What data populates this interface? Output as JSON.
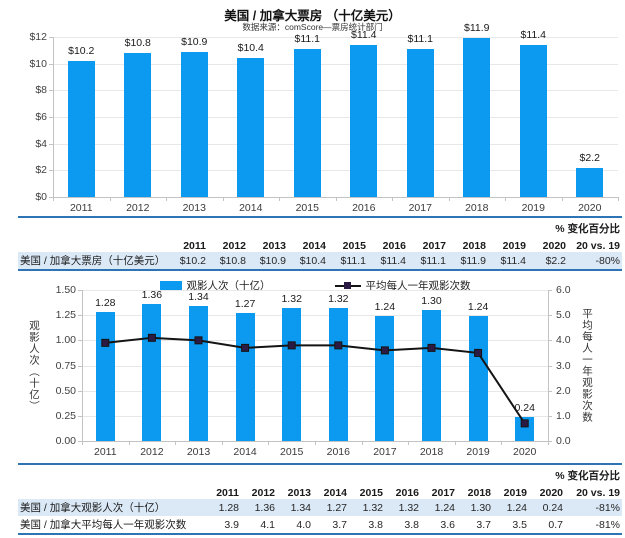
{
  "title": "美国 / 加拿大票房 （十亿美元）",
  "subtitle": "数据来源：comScore—票房统计部门",
  "colors": {
    "bar": "#0C99F0",
    "line": "#141414",
    "marker": "#2B1B44",
    "table_border": "#2E74B5",
    "row_highlight": "#DBE9F7",
    "grid": "#E8E8E8",
    "axis": "#C3C3C3"
  },
  "chart_data": [
    {
      "type": "bar",
      "title": "美国 / 加拿大票房 （十亿美元）",
      "subtitle": "数据来源：comScore—票房统计部门",
      "categories": [
        "2011",
        "2012",
        "2013",
        "2014",
        "2015",
        "2016",
        "2017",
        "2018",
        "2019",
        "2020"
      ],
      "values": [
        10.2,
        10.8,
        10.9,
        10.4,
        11.1,
        11.4,
        11.1,
        11.9,
        11.4,
        2.2
      ],
      "data_labels": [
        "$10.2",
        "$10.8",
        "$10.9",
        "$10.4",
        "$11.1",
        "$11.4",
        "$11.1",
        "$11.9",
        "$11.4",
        "$2.2"
      ],
      "xlabel": "",
      "ylabel": "",
      "ylim": [
        0,
        12
      ],
      "yticks": [
        "$0",
        "$2",
        "$4",
        "$6",
        "$8",
        "$10",
        "$12"
      ],
      "grid": true,
      "legend_position": "none"
    },
    {
      "type": "combo",
      "categories": [
        "2011",
        "2012",
        "2013",
        "2014",
        "2015",
        "2016",
        "2017",
        "2018",
        "2019",
        "2020"
      ],
      "series": [
        {
          "name": "观影人次（十亿）",
          "type": "bar",
          "axis": "left",
          "values": [
            1.28,
            1.36,
            1.34,
            1.27,
            1.32,
            1.32,
            1.24,
            1.3,
            1.24,
            0.24
          ],
          "data_labels": [
            "1.28",
            "1.36",
            "1.34",
            "1.27",
            "1.32",
            "1.32",
            "1.24",
            "1.30",
            "1.24",
            "0.24"
          ]
        },
        {
          "name": "平均每人一年观影次数",
          "type": "line",
          "axis": "right",
          "values": [
            3.9,
            4.1,
            4.0,
            3.7,
            3.8,
            3.8,
            3.6,
            3.7,
            3.5,
            0.7
          ]
        }
      ],
      "left_axis": {
        "label": "观影人次（十亿）",
        "lim": [
          0,
          1.5
        ],
        "ticks": [
          "0.00",
          "0.25",
          "0.50",
          "0.75",
          "1.00",
          "1.25",
          "1.50"
        ]
      },
      "right_axis": {
        "label": "平均每人一年观影次数",
        "lim": [
          0,
          6
        ],
        "ticks": [
          "0.0",
          "1.0",
          "2.0",
          "3.0",
          "4.0",
          "5.0",
          "6.0"
        ]
      },
      "grid": true,
      "legend_position": "top"
    }
  ],
  "tables": [
    {
      "change_header_top": "% 变化百分比",
      "columns": [
        "2011",
        "2012",
        "2013",
        "2014",
        "2015",
        "2016",
        "2017",
        "2018",
        "2019",
        "2020",
        "20 vs. 19"
      ],
      "rows": [
        {
          "label": "美国 / 加拿大票房（十亿美元）",
          "values": [
            "$10.2",
            "$10.8",
            "$10.9",
            "$10.4",
            "$11.1",
            "$11.4",
            "$11.1",
            "$11.9",
            "$11.4",
            "$2.2",
            "-80%"
          ],
          "highlight": true
        }
      ]
    },
    {
      "change_header_top": "% 变化百分比",
      "columns": [
        "2011",
        "2012",
        "2013",
        "2014",
        "2015",
        "2016",
        "2017",
        "2018",
        "2019",
        "2020",
        "20 vs. 19"
      ],
      "rows": [
        {
          "label": "美国 / 加拿大观影人次（十亿）",
          "values": [
            "1.28",
            "1.36",
            "1.34",
            "1.27",
            "1.32",
            "1.32",
            "1.24",
            "1.30",
            "1.24",
            "0.24",
            "-81%"
          ],
          "highlight": true
        },
        {
          "label": "美国 / 加拿大平均每人一年观影次数",
          "values": [
            "3.9",
            "4.1",
            "4.0",
            "3.7",
            "3.8",
            "3.8",
            "3.6",
            "3.7",
            "3.5",
            "0.7",
            "-81%"
          ],
          "highlight": false
        }
      ]
    }
  ]
}
